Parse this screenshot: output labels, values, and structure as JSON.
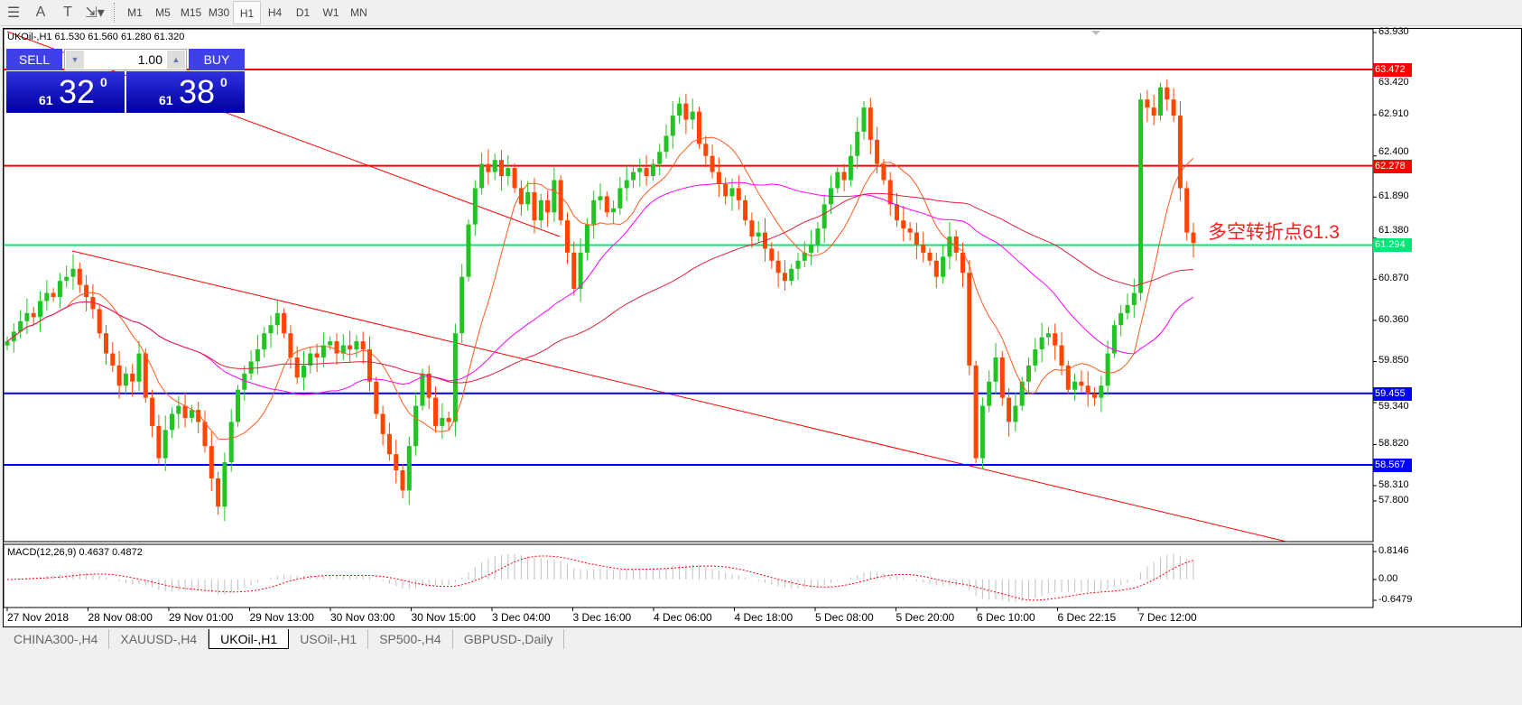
{
  "toolbar": {
    "icons": [
      "period-separator-icon",
      "text-A-icon",
      "text-label-icon",
      "arrows-icon"
    ],
    "timeframes": [
      "M1",
      "M5",
      "M15",
      "M30",
      "H1",
      "H4",
      "D1",
      "W1",
      "MN"
    ],
    "active": "H1"
  },
  "chart": {
    "symbol_info": "UKOil-,H1  61.530 61.560 61.280 61.320",
    "trade_panel": {
      "sell": "SELL",
      "buy": "BUY",
      "lot": "1.00",
      "sell_big": "61",
      "sell_digits": "32",
      "sell_sup": "0",
      "buy_big": "61",
      "buy_digits": "38",
      "buy_sup": "0"
    },
    "annotation": "多空转折点61.3",
    "price_ticks": [
      "63.930",
      "63.420",
      "62.910",
      "62.400",
      "61.890",
      "61.380",
      "60.870",
      "60.360",
      "59.850",
      "59.340",
      "58.820",
      "58.310",
      "57.800"
    ],
    "levels": [
      {
        "price": "63.472",
        "color": "#ff0000"
      },
      {
        "price": "62.278",
        "color": "#ff0000"
      },
      {
        "price": "61.294",
        "color": "#00e676"
      },
      {
        "price": "59.455",
        "color": "#0000ff"
      },
      {
        "price": "58.567",
        "color": "#0000ff"
      }
    ],
    "time_labels": [
      "27 Nov 2018",
      "28 Nov 08:00",
      "29 Nov 01:00",
      "29 Nov 13:00",
      "30 Nov 03:00",
      "30 Nov 15:00",
      "3 Dec 04:00",
      "3 Dec 16:00",
      "4 Dec 06:00",
      "4 Dec 18:00",
      "5 Dec 08:00",
      "5 Dec 20:00",
      "6 Dec 10:00",
      "6 Dec 22:15",
      "7 Dec 12:00"
    ],
    "macd": {
      "label": "MACD(12,26,9) 0.4637 0.4872",
      "ticks": [
        "0.8146",
        "0.00",
        "-0.6479"
      ]
    },
    "colors": {
      "up": "#22c322",
      "down": "#ff4500",
      "ma_fast": "#ff5a1e",
      "ma_mid": "#ff00ff",
      "ma_slow": "#e0203a",
      "trendline": "#ff0000",
      "macd_hist": "#c0c0c0",
      "macd_signal": "#ff0000"
    }
  },
  "chart_data": {
    "type": "candlestick",
    "symbol": "UKOil-",
    "timeframe": "H1",
    "ylim": [
      57.8,
      63.93
    ],
    "close": [
      60.1,
      60.22,
      60.35,
      60.45,
      60.4,
      60.6,
      60.7,
      60.65,
      60.85,
      60.9,
      61.0,
      60.8,
      60.65,
      60.5,
      60.2,
      59.95,
      59.8,
      59.55,
      59.7,
      59.6,
      59.95,
      59.4,
      59.05,
      58.65,
      59.0,
      59.2,
      59.3,
      59.15,
      59.25,
      59.1,
      58.8,
      58.4,
      58.05,
      58.6,
      59.1,
      59.5,
      59.7,
      59.85,
      60.0,
      60.2,
      60.3,
      60.45,
      60.2,
      59.9,
      59.65,
      59.8,
      59.95,
      59.9,
      60.05,
      60.1,
      59.95,
      60.05,
      60.0,
      60.1,
      60.0,
      59.6,
      59.2,
      58.95,
      58.7,
      58.5,
      58.25,
      58.8,
      59.3,
      59.7,
      59.4,
      59.05,
      59.15,
      59.1,
      60.2,
      60.9,
      61.55,
      62.0,
      62.3,
      62.2,
      62.35,
      62.15,
      62.25,
      62.0,
      61.8,
      61.95,
      61.6,
      61.85,
      61.7,
      62.1,
      61.6,
      61.2,
      60.75,
      61.2,
      61.55,
      61.85,
      61.9,
      61.7,
      61.75,
      62.0,
      62.1,
      62.2,
      62.25,
      62.15,
      62.3,
      62.45,
      62.65,
      62.9,
      63.05,
      62.85,
      62.95,
      62.55,
      62.4,
      62.2,
      62.05,
      61.9,
      62.0,
      61.85,
      61.6,
      61.4,
      61.45,
      61.25,
      61.1,
      60.95,
      60.85,
      61.0,
      61.1,
      61.2,
      61.3,
      61.5,
      61.8,
      62.0,
      62.2,
      62.1,
      62.4,
      62.7,
      63.0,
      62.6,
      62.3,
      62.1,
      61.8,
      61.6,
      61.5,
      61.45,
      61.3,
      61.2,
      61.1,
      60.9,
      61.15,
      61.4,
      61.2,
      60.95,
      59.8,
      58.65,
      59.3,
      59.6,
      59.9,
      59.4,
      59.1,
      59.3,
      59.6,
      59.8,
      60.0,
      60.15,
      60.2,
      60.05,
      59.8,
      59.5,
      59.6,
      59.55,
      59.45,
      59.4,
      59.55,
      59.95,
      60.3,
      60.45,
      60.55,
      60.7,
      63.1,
      63.0,
      62.9,
      63.25,
      63.1,
      62.9,
      62.0,
      61.45,
      61.32
    ]
  },
  "tabs": [
    "CHINA300-,H4",
    "XAUUSD-,H4",
    "UKOil-,H1",
    "USOil-,H1",
    "SP500-,H4",
    "GBPUSD-,Daily"
  ],
  "active_tab": "UKOil-,H1"
}
